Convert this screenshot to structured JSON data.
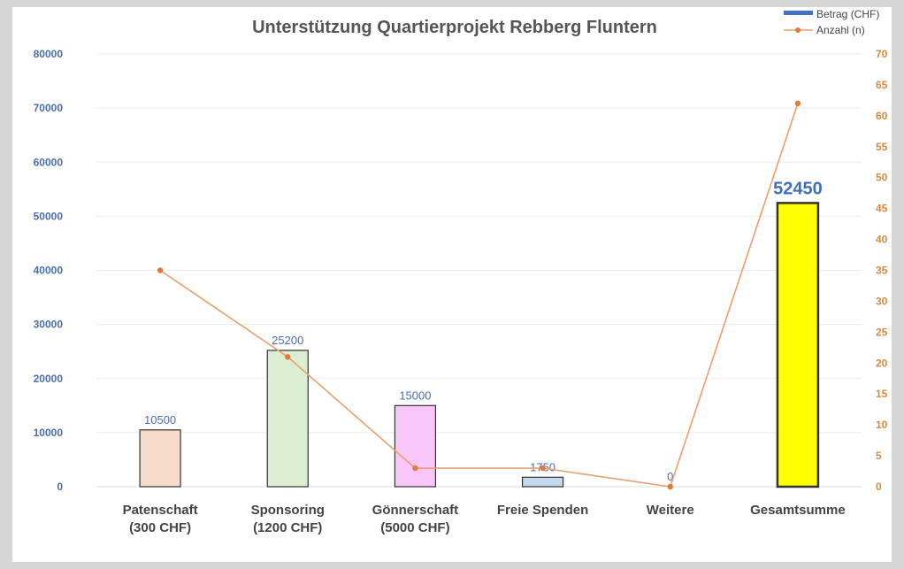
{
  "chart_data": {
    "type": "bar",
    "title": "Unterstützung Quartierprojekt Rebberg Fluntern",
    "categories": [
      [
        "Patenschaft",
        "(300 CHF)"
      ],
      [
        "Sponsoring",
        "(1200 CHF)"
      ],
      [
        "Gönnerschaft",
        "(5000 CHF)"
      ],
      [
        "Freie Spenden"
      ],
      [
        "Weitere"
      ],
      [
        "Gesamtsumme"
      ]
    ],
    "series": [
      {
        "name": "Betrag (CHF)",
        "kind": "bar",
        "axis": "left",
        "values": [
          10500,
          25200,
          15000,
          1750,
          0,
          52450
        ],
        "data_labels": [
          "10500",
          "25200",
          "15000",
          "1750",
          "0",
          "52450"
        ],
        "colors": [
          "#f6dcc8",
          "#dcefd2",
          "#f8c6f8",
          "#c4d8ee",
          "#ffffff",
          "#ffff00"
        ]
      },
      {
        "name": "Anzahl (n)",
        "kind": "line",
        "axis": "right",
        "values": [
          35,
          21,
          3,
          3,
          0,
          62
        ],
        "color": "#e8a070"
      }
    ],
    "y_left": {
      "ylim": [
        0,
        80000
      ],
      "ticks": [
        "0",
        "10000",
        "20000",
        "30000",
        "40000",
        "50000",
        "60000",
        "70000",
        "80000"
      ]
    },
    "y_right": {
      "ylim": [
        0,
        70
      ],
      "ticks": [
        "0",
        "5",
        "10",
        "15",
        "20",
        "25",
        "30",
        "35",
        "40",
        "45",
        "50",
        "55",
        "60",
        "65",
        "70"
      ]
    },
    "grid": true,
    "legend": "top-right"
  }
}
